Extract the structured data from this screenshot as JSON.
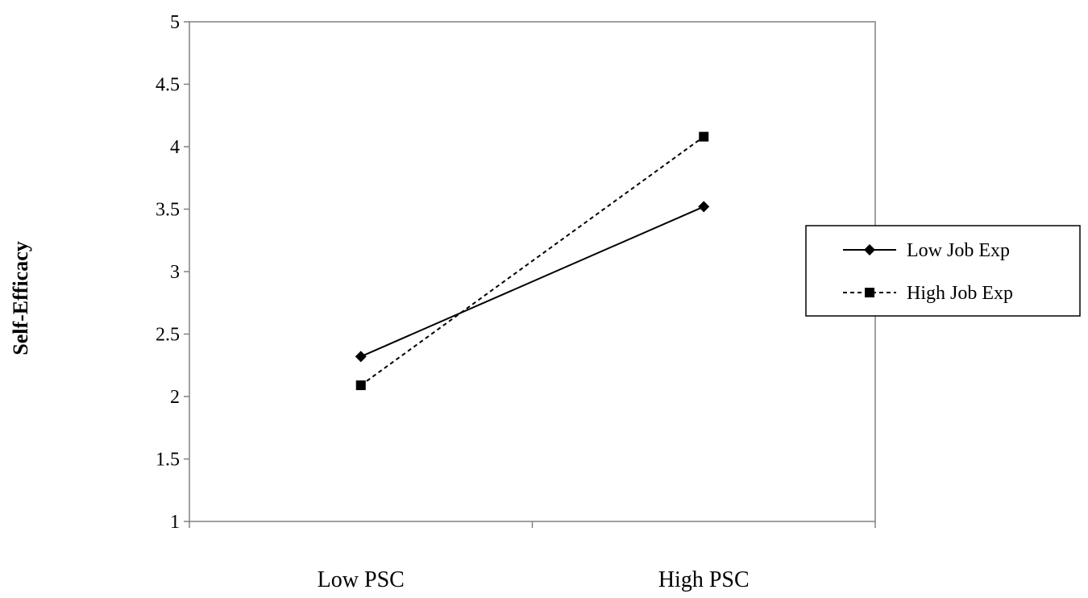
{
  "chart_data": {
    "type": "line",
    "title": "",
    "xlabel": "",
    "ylabel": "Self-Efficacy",
    "categories": [
      "Low PSC",
      "High PSC"
    ],
    "ylim": [
      1,
      5
    ],
    "yticks": [
      "1",
      "1.5",
      "2",
      "2.5",
      "3",
      "3.5",
      "4",
      "4.5",
      "5"
    ],
    "grid": false,
    "legend_position": "right",
    "series": [
      {
        "name": "Low Job Exp",
        "values": [
          2.32,
          3.52
        ],
        "line_style": "solid",
        "marker": "diamond",
        "color": "#000000"
      },
      {
        "name": "High Job Exp",
        "values": [
          2.09,
          4.08
        ],
        "line_style": "dashed",
        "marker": "square",
        "color": "#000000"
      }
    ]
  }
}
